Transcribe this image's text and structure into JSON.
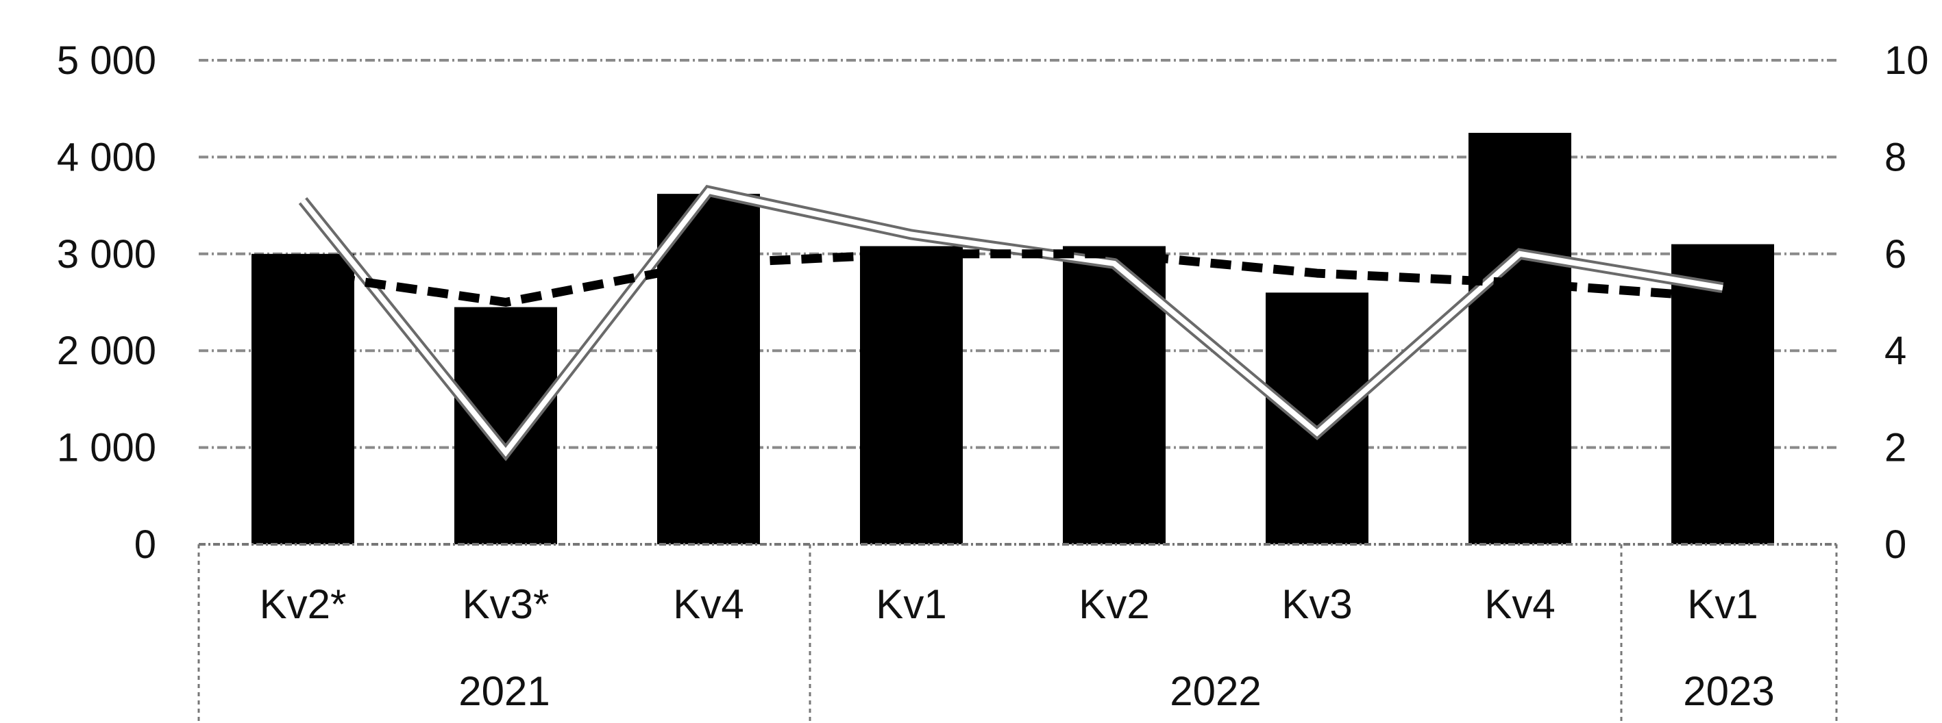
{
  "chart_data": {
    "type": "bar",
    "categories": [
      "Kv2*",
      "Kv3*",
      "Kv4",
      "Kv1",
      "Kv2",
      "Kv3",
      "Kv4",
      "Kv1"
    ],
    "groups": [
      {
        "label": "2021",
        "count": 3
      },
      {
        "label": "2022",
        "count": 4
      },
      {
        "label": "2023",
        "count": 1
      }
    ],
    "y_left": {
      "ylim": [
        0,
        5000
      ],
      "ticks": [
        0,
        1000,
        2000,
        3000,
        4000,
        5000
      ],
      "tick_labels": [
        "0",
        "1 000",
        "2 000",
        "3 000",
        "4 000",
        "5 000"
      ]
    },
    "y_right": {
      "ylim": [
        0,
        10
      ],
      "ticks": [
        0,
        2,
        4,
        6,
        8,
        10
      ],
      "tick_labels": [
        "0",
        "2",
        "4",
        "6",
        "8",
        "10"
      ]
    },
    "series": [
      {
        "type": "bar",
        "axis": "left",
        "color": "#000000",
        "values": [
          3000,
          2450,
          3620,
          3080,
          3080,
          2600,
          4250,
          3100
        ]
      },
      {
        "type": "line",
        "axis": "right",
        "style": "solid-white",
        "color": "#ffffff",
        "values": [
          7.1,
          1.9,
          7.3,
          6.4,
          5.8,
          2.3,
          6.0,
          5.3
        ]
      },
      {
        "type": "line",
        "axis": "right",
        "style": "dashed",
        "color": "#000000",
        "values": [
          5.6,
          5.0,
          5.8,
          6.0,
          6.0,
          5.6,
          5.4,
          5.1
        ]
      }
    ],
    "grid": true,
    "title": "",
    "xlabel": "",
    "ylabel": ""
  }
}
